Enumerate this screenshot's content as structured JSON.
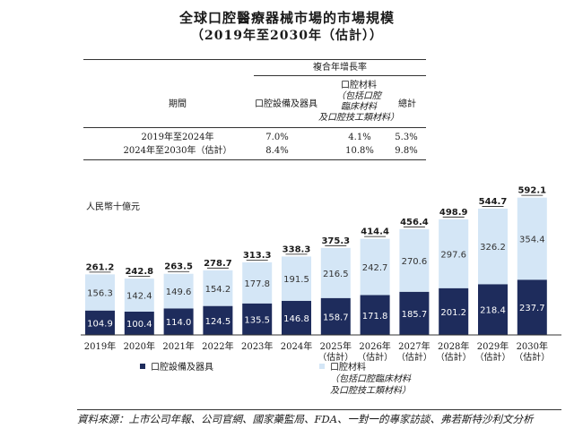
{
  "title": "全球口腔醫療器械市場的市場規模",
  "subtitle": "（2019年至2030年（估計））",
  "cagr_table": {
    "group_header": "複合年增長率",
    "col_period": "期間",
    "col_equipment": "口腔設備及器具",
    "col_materials": "口腔材料",
    "col_materials_note_1": "（包括口腔",
    "col_materials_note_2": "臨床材料",
    "col_materials_note_3": "及口腔技工類材料）",
    "col_total": "總計",
    "rows": [
      {
        "period": "2019年至2024年",
        "equipment": "7.0%",
        "materials": "4.1%",
        "total": "5.3%"
      },
      {
        "period": "2024年至2030年（估計）",
        "equipment": "8.4%",
        "materials": "10.8%",
        "total": "9.8%"
      }
    ]
  },
  "chart_data": {
    "type": "bar",
    "stacked": true,
    "ylabel": "人民幣十億元",
    "categories": [
      "2019年",
      "2020年",
      "2021年",
      "2022年",
      "2023年",
      "2024年",
      "2025年",
      "2026年",
      "2027年",
      "2028年",
      "2029年",
      "2030年"
    ],
    "category_notes": [
      "",
      "",
      "",
      "",
      "",
      "",
      "（估計）",
      "（估計）",
      "（估計）",
      "（估計）",
      "（估計）",
      "（估計）"
    ],
    "series": [
      {
        "name": "口腔設備及器具",
        "color": "#1e2c5c",
        "values": [
          104.9,
          100.4,
          114.0,
          124.5,
          135.5,
          146.8,
          158.7,
          171.8,
          185.7,
          201.2,
          218.4,
          237.7
        ]
      },
      {
        "name": "口腔材料",
        "color": "#d4e6f6",
        "values": [
          156.3,
          142.4,
          149.6,
          154.2,
          177.8,
          191.5,
          216.5,
          242.7,
          270.6,
          297.6,
          326.2,
          354.4
        ]
      }
    ],
    "totals": [
      261.2,
      242.8,
      263.5,
      278.7,
      313.3,
      338.3,
      375.3,
      414.4,
      456.4,
      498.9,
      544.7,
      592.1
    ],
    "legend": [
      {
        "label": "口腔設備及器具"
      },
      {
        "label": "口腔材料",
        "note_1": "（包括口腔臨床材料",
        "note_2": "及口腔技工類材料）"
      }
    ],
    "legend_position": "bottom",
    "grid": false
  },
  "source": "資料來源：上市公司年報、公司官網、國家藥監局、FDA、一對一的專家訪談、弗若斯特沙利文分析"
}
